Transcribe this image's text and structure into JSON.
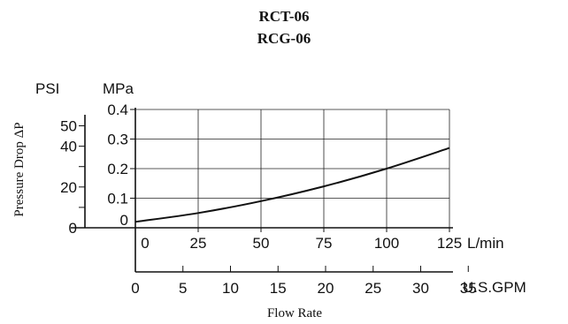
{
  "chart_data": {
    "type": "line",
    "title_lines": [
      "RCT-06",
      "RCG-06"
    ],
    "ylabel": "Pressure Drop ΔP",
    "xlabel": "Flow Rate",
    "y_units": {
      "primary": "MPa",
      "secondary": "PSI"
    },
    "x_units": {
      "primary": "L/min",
      "secondary": "U.S.GPM"
    },
    "ylim_mpa": [
      0,
      0.4
    ],
    "xlim_lpm": [
      0,
      125
    ],
    "grid": true,
    "mpa_ticks": [
      "0",
      "0.1",
      "0.2",
      "0.3",
      "0.4"
    ],
    "psi_ticks": [
      {
        "value": 0,
        "label": "0"
      },
      {
        "value": 10,
        "label": ""
      },
      {
        "value": 20,
        "label": "20"
      },
      {
        "value": 30,
        "label": ""
      },
      {
        "value": 40,
        "label": "40"
      },
      {
        "value": 50,
        "label": "50"
      }
    ],
    "lpm_ticks": [
      "0",
      "25",
      "50",
      "75",
      "100",
      "125"
    ],
    "gpm_ticks": [
      "0",
      "5",
      "10",
      "15",
      "20",
      "25",
      "30",
      "35"
    ],
    "series": [
      {
        "x": [
          0,
          25,
          50,
          75,
          100,
          125
        ],
        "y": [
          0.02,
          0.05,
          0.09,
          0.14,
          0.2,
          0.27
        ]
      }
    ]
  }
}
